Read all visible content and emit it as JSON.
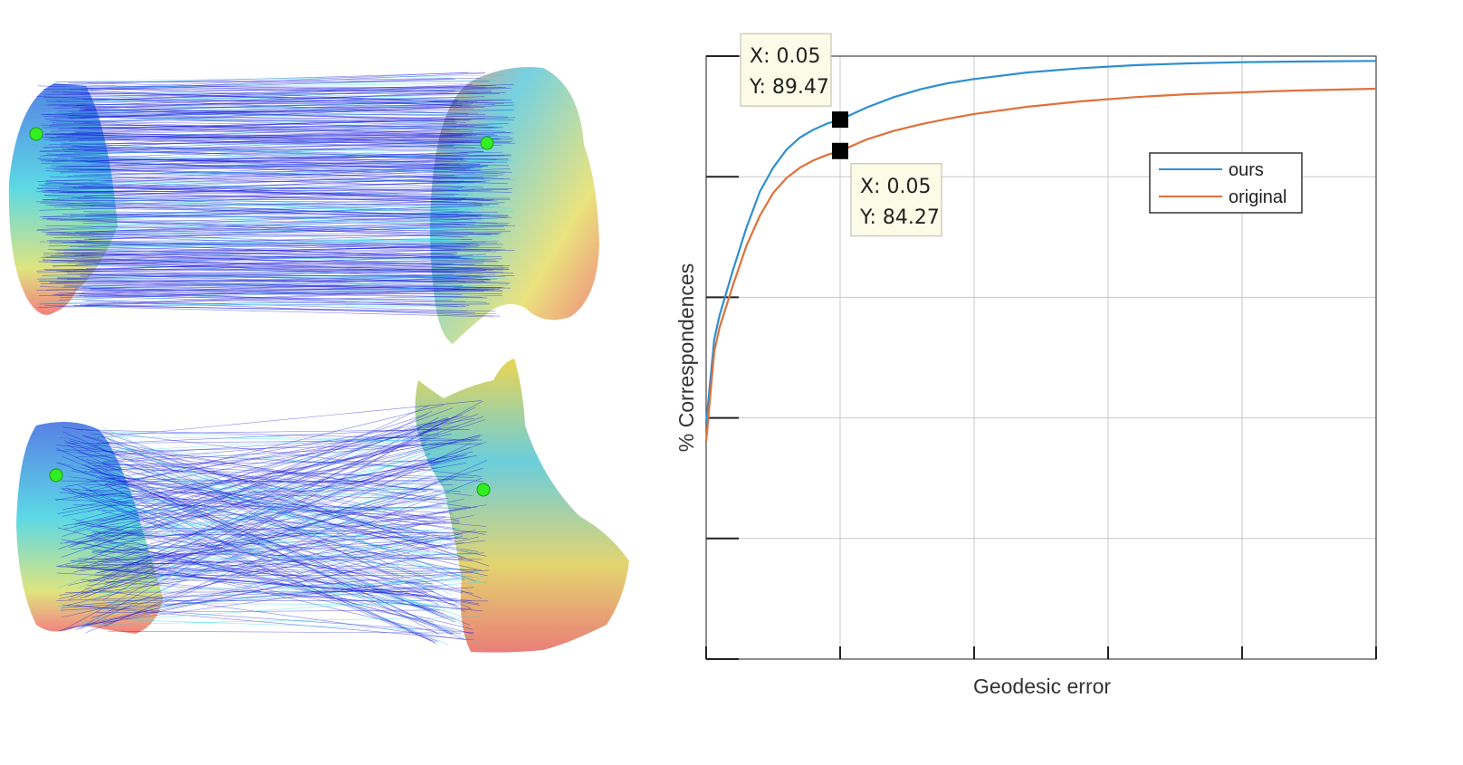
{
  "figure": {
    "left_panel": {
      "description_icons": [
        "shape-correspondence-top",
        "shape-correspondence-bottom"
      ],
      "colors": {
        "lines_dark": "#1a1adc",
        "lines_light": "#2fd6e8",
        "keypoint": "#33ee22"
      }
    }
  },
  "chart_data": {
    "type": "line",
    "title": "",
    "xlabel": "Geodesic error",
    "ylabel": "% Correspondences",
    "xlim": [
      0,
      0.25
    ],
    "ylim": [
      0,
      100
    ],
    "xticks": [
      0,
      0.05,
      0.1,
      0.15,
      0.2,
      0.25
    ],
    "yticks": [
      0,
      20,
      40,
      60,
      80,
      100
    ],
    "grid": true,
    "legend_position": "upper-right-inside",
    "series": [
      {
        "name": "ours",
        "color": "#2d8fd0",
        "x": [
          0,
          0.003,
          0.005,
          0.01,
          0.015,
          0.02,
          0.025,
          0.03,
          0.035,
          0.04,
          0.045,
          0.05,
          0.06,
          0.07,
          0.08,
          0.09,
          0.1,
          0.12,
          0.14,
          0.16,
          0.18,
          0.2,
          0.22,
          0.25
        ],
        "y": [
          39,
          53,
          57,
          64.5,
          71.5,
          77.5,
          81.5,
          84.5,
          86.5,
          87.8,
          88.8,
          89.47,
          91.5,
          93.2,
          94.5,
          95.5,
          96.2,
          97.3,
          98.0,
          98.5,
          98.8,
          99.0,
          99.1,
          99.2
        ]
      },
      {
        "name": "original",
        "color": "#e0703a",
        "x": [
          0,
          0.003,
          0.005,
          0.01,
          0.015,
          0.02,
          0.025,
          0.03,
          0.035,
          0.04,
          0.045,
          0.05,
          0.06,
          0.07,
          0.08,
          0.09,
          0.1,
          0.12,
          0.14,
          0.16,
          0.18,
          0.2,
          0.22,
          0.25
        ],
        "y": [
          36,
          51,
          55,
          62,
          68.5,
          73.5,
          77.3,
          79.8,
          81.5,
          82.7,
          83.6,
          84.27,
          86.2,
          87.6,
          88.7,
          89.6,
          90.4,
          91.6,
          92.5,
          93.2,
          93.7,
          94.0,
          94.3,
          94.6
        ]
      }
    ],
    "annotations": [
      {
        "series": "ours",
        "x_label": "X",
        "x_value": "0.05",
        "y_label": "Y",
        "y_value": "89.47",
        "x": 0.05,
        "y": 89.47
      },
      {
        "series": "original",
        "x_label": "X",
        "x_value": "0.05",
        "y_label": "Y",
        "y_value": "84.27",
        "x": 0.05,
        "y": 84.27
      }
    ]
  }
}
